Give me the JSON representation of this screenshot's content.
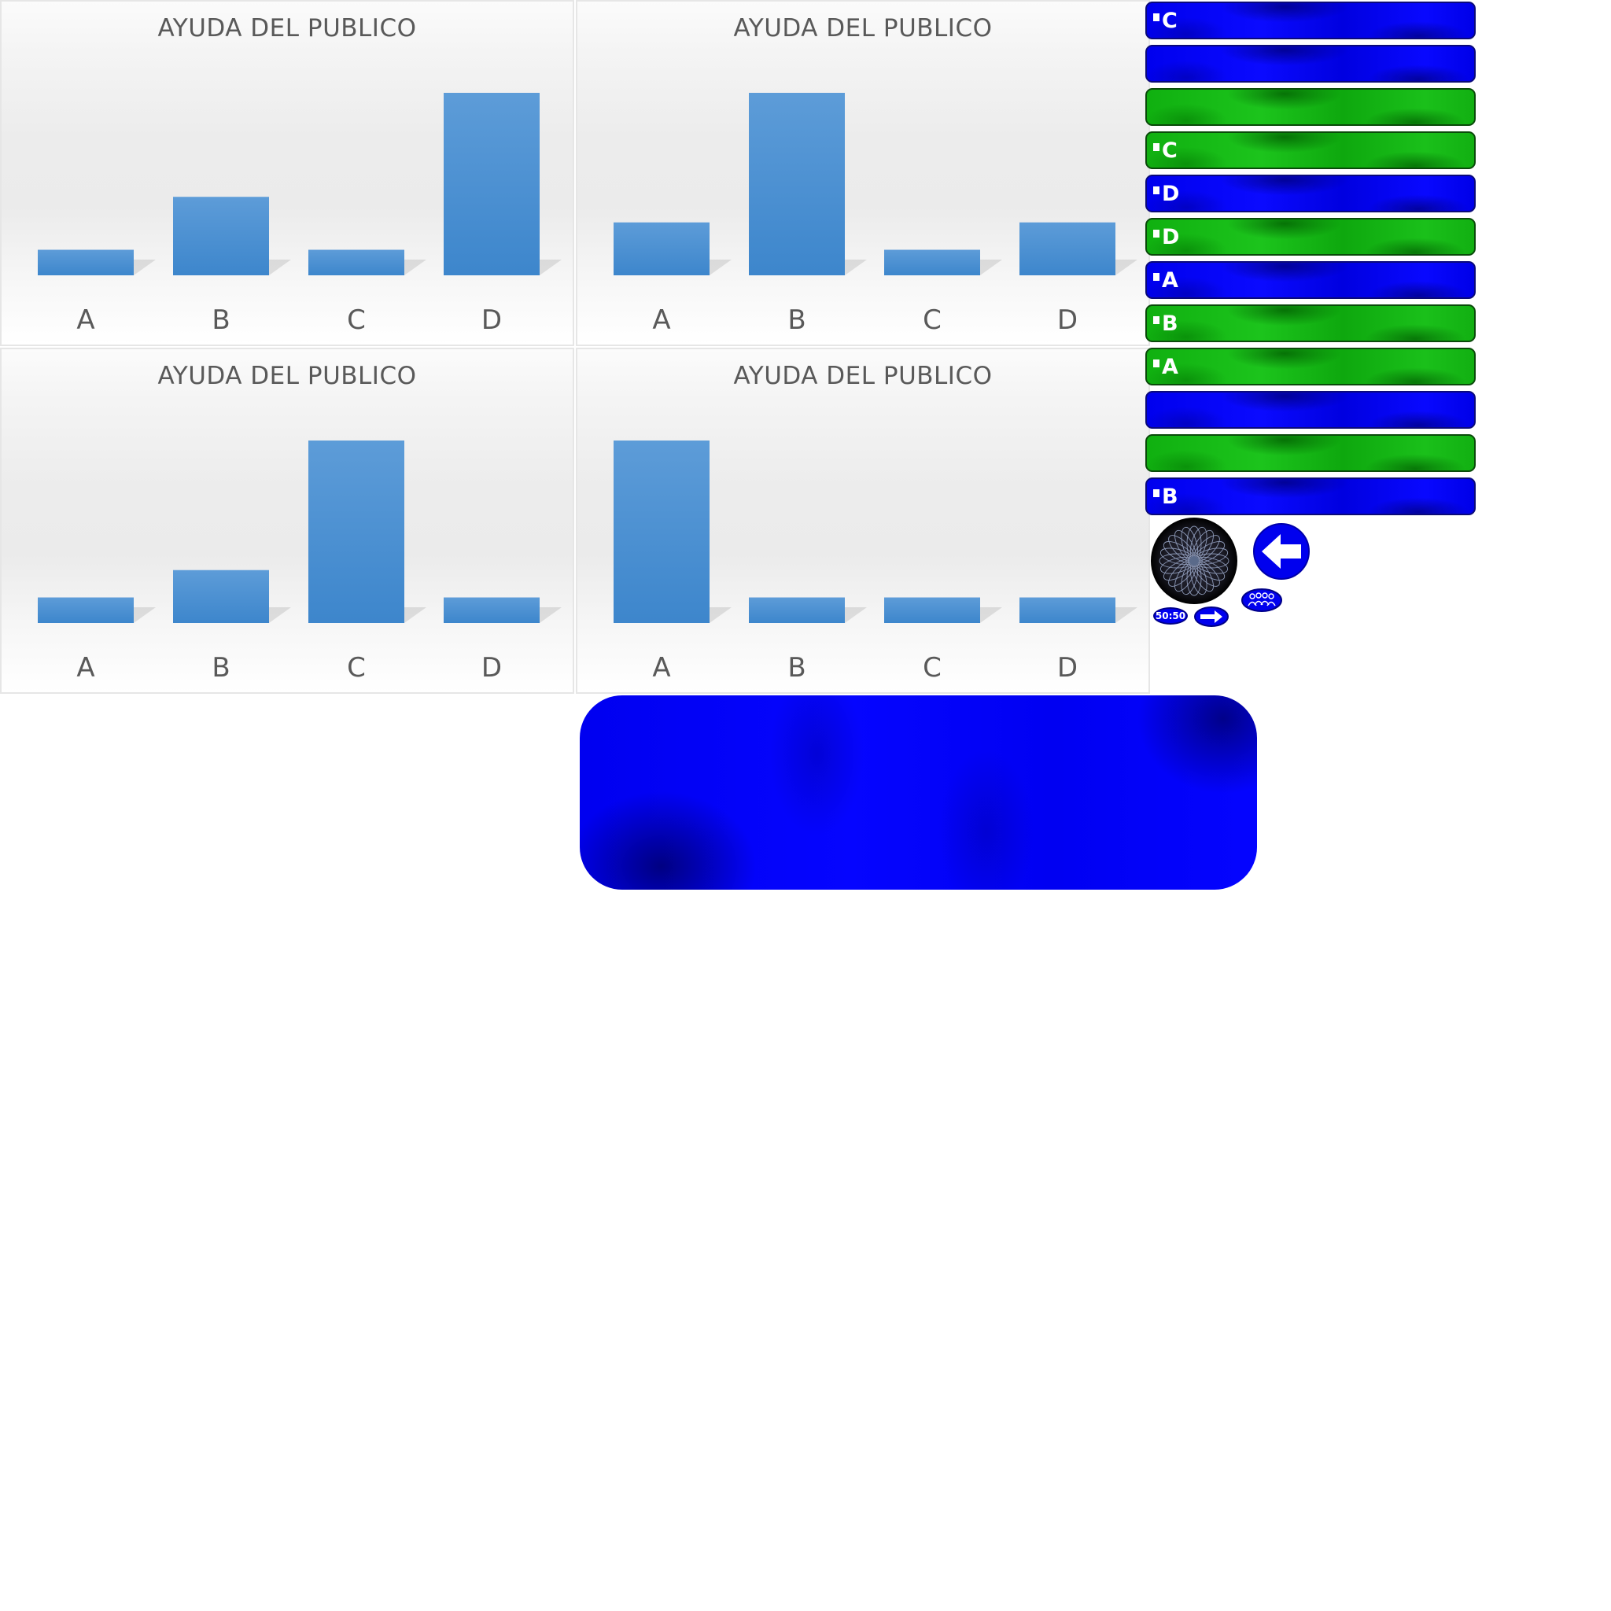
{
  "colors": {
    "bar": "#4a90d2",
    "answer_blue": "#0000ee",
    "answer_green": "#14b414",
    "panel_border": "#e6e6e6"
  },
  "chart_data": [
    {
      "type": "bar",
      "title": "AYUDA DEL PUBLICO",
      "categories": [
        "A",
        "B",
        "C",
        "D"
      ],
      "values": [
        14,
        43,
        14,
        100
      ],
      "ylim": [
        0,
        100
      ],
      "grid": false
    },
    {
      "type": "bar",
      "title": "AYUDA DEL PUBLICO",
      "categories": [
        "A",
        "B",
        "C",
        "D"
      ],
      "values": [
        29,
        100,
        14,
        29
      ],
      "ylim": [
        0,
        100
      ],
      "grid": false
    },
    {
      "type": "bar",
      "title": "AYUDA DEL PUBLICO",
      "categories": [
        "A",
        "B",
        "C",
        "D"
      ],
      "values": [
        14,
        29,
        100,
        14
      ],
      "ylim": [
        0,
        100
      ],
      "grid": false
    },
    {
      "type": "bar",
      "title": "AYUDA DEL PUBLICO",
      "categories": [
        "A",
        "B",
        "C",
        "D"
      ],
      "values": [
        100,
        14,
        14,
        14
      ],
      "ylim": [
        0,
        100
      ],
      "grid": false
    }
  ],
  "answer_bars": [
    {
      "color": "blue",
      "letter": "C"
    },
    {
      "color": "blue",
      "letter": ""
    },
    {
      "color": "green",
      "letter": ""
    },
    {
      "color": "green",
      "letter": "C"
    },
    {
      "color": "blue",
      "letter": "D"
    },
    {
      "color": "green",
      "letter": "D"
    },
    {
      "color": "blue",
      "letter": "A"
    },
    {
      "color": "green",
      "letter": "B"
    },
    {
      "color": "green",
      "letter": "A"
    },
    {
      "color": "blue",
      "letter": ""
    },
    {
      "color": "green",
      "letter": ""
    },
    {
      "color": "blue",
      "letter": "B"
    }
  ],
  "lifelines": {
    "fifty_fifty_label": "50:50",
    "icons": [
      "spiral-disc-icon",
      "back-arrow-icon",
      "fifty-fifty-icon",
      "next-arrow-icon",
      "audience-icon"
    ]
  }
}
